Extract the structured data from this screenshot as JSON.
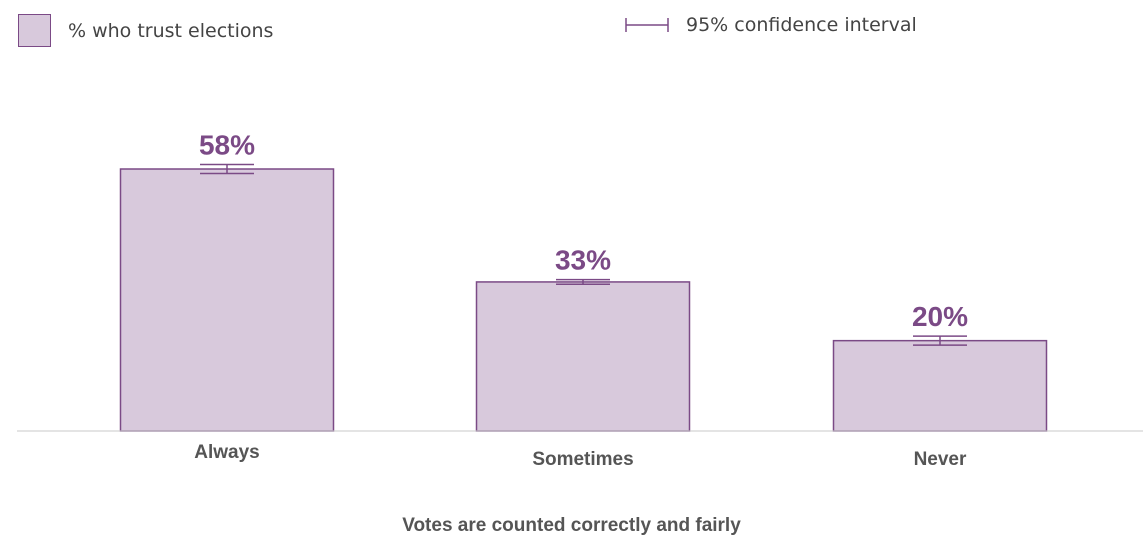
{
  "colors": {
    "bar_fill": "#d8c9dc",
    "bar_stroke": "#7b4a86",
    "label": "#7b4a86",
    "axis": "#c9c9c9"
  },
  "legend": {
    "series_label": "% who trust elections",
    "ci_label": "95% confidence interval"
  },
  "chart_data": {
    "type": "bar",
    "categories": [
      "Always",
      "Sometimes",
      "Never"
    ],
    "series": [
      {
        "values": [
          58,
          33,
          20
        ],
        "value_labels": [
          "58%",
          "33%",
          "20%"
        ],
        "ci": [
          [
            57,
            59
          ],
          [
            32.5,
            33.5
          ],
          [
            19,
            21
          ]
        ]
      }
    ],
    "xlabel": "Votes are counted correctly and fairly",
    "ylabel": "",
    "ylim": [
      0,
      58
    ]
  }
}
